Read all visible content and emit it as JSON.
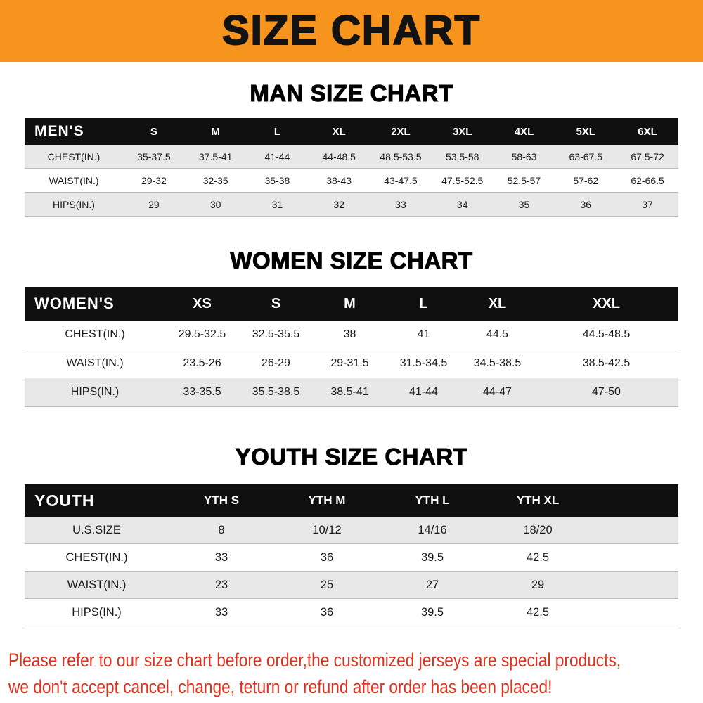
{
  "banner": {
    "title": "SIZE CHART"
  },
  "colors": {
    "banner_bg": "#f7941d",
    "table_header_bg": "#101010",
    "row_stripe": "#e8e8e8",
    "disclaimer_text": "#e2301c"
  },
  "men": {
    "title": "MAN SIZE CHART",
    "header": [
      "MEN'S",
      "S",
      "M",
      "L",
      "XL",
      "2XL",
      "3XL",
      "4XL",
      "5XL",
      "6XL"
    ],
    "rows": [
      [
        "CHEST(IN.)",
        "35-37.5",
        "37.5-41",
        "41-44",
        "44-48.5",
        "48.5-53.5",
        "53.5-58",
        "58-63",
        "63-67.5",
        "67.5-72"
      ],
      [
        "WAIST(IN.)",
        "29-32",
        "32-35",
        "35-38",
        "38-43",
        "43-47.5",
        "47.5-52.5",
        "52.5-57",
        "57-62",
        "62-66.5"
      ],
      [
        "HIPS(IN.)",
        "29",
        "30",
        "31",
        "32",
        "33",
        "34",
        "35",
        "36",
        "37"
      ]
    ]
  },
  "women": {
    "title": "WOMEN SIZE CHART",
    "header": [
      "WOMEN'S",
      "XS",
      "S",
      "M",
      "L",
      "XL",
      "XXL"
    ],
    "rows": [
      [
        "CHEST(IN.)",
        "29.5-32.5",
        "32.5-35.5",
        "38",
        "41",
        "44.5",
        "44.5-48.5"
      ],
      [
        "WAIST(IN.)",
        "23.5-26",
        "26-29",
        "29-31.5",
        "31.5-34.5",
        "34.5-38.5",
        "38.5-42.5"
      ],
      [
        "HIPS(IN.)",
        "33-35.5",
        "35.5-38.5",
        "38.5-41",
        "41-44",
        "44-47",
        "47-50"
      ]
    ]
  },
  "youth": {
    "title": "YOUTH SIZE CHART",
    "header": [
      "YOUTH",
      "YTH S",
      "YTH M",
      "YTH L",
      "YTH XL"
    ],
    "rows": [
      [
        "U.S.SIZE",
        "8",
        "10/12",
        "14/16",
        "18/20"
      ],
      [
        "CHEST(IN.)",
        "33",
        "36",
        "39.5",
        "42.5"
      ],
      [
        "WAIST(IN.)",
        "23",
        "25",
        "27",
        "29"
      ],
      [
        "HIPS(IN.)",
        "33",
        "36",
        "39.5",
        "42.5"
      ]
    ]
  },
  "disclaimer": {
    "line1": "Please refer to our size chart before order,the customized jerseys are special products,",
    "line2": "we don't accept cancel, change, teturn or refund after order has been placed!"
  }
}
